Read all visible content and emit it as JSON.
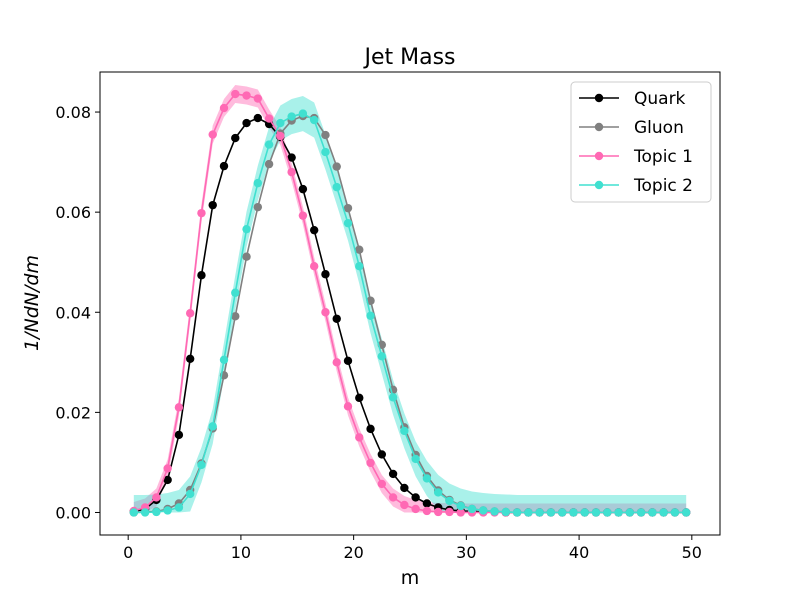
{
  "chart_data": {
    "type": "line",
    "title": "Jet Mass",
    "xlabel": "m",
    "ylabel": "1/NdN/dm",
    "xlim": [
      -2.5,
      52.5
    ],
    "ylim": [
      -0.0045,
      0.088
    ],
    "xticks": [
      0,
      10,
      20,
      30,
      40,
      50
    ],
    "xtick_labels": [
      "0",
      "10",
      "20",
      "30",
      "40",
      "50"
    ],
    "yticks": [
      0.0,
      0.02,
      0.04,
      0.06,
      0.08
    ],
    "ytick_labels": [
      "0.00",
      "0.02",
      "0.04",
      "0.06",
      "0.08"
    ],
    "grid": false,
    "legend_position": "top-right",
    "x": [
      0.5,
      1.5,
      2.5,
      3.5,
      4.5,
      5.5,
      6.5,
      7.5,
      8.5,
      9.5,
      10.5,
      11.5,
      12.5,
      13.5,
      14.5,
      15.5,
      16.5,
      17.5,
      18.5,
      19.5,
      20.5,
      21.5,
      22.5,
      23.5,
      24.5,
      25.5,
      26.5,
      27.5,
      28.5,
      29.5,
      30.5,
      31.5,
      32.5,
      33.5,
      34.5,
      35.5,
      36.5,
      37.5,
      38.5,
      39.5,
      40.5,
      41.5,
      42.5,
      43.5,
      44.5,
      45.5,
      46.5,
      47.5,
      48.5,
      49.5
    ],
    "series": [
      {
        "name": "Quark",
        "color": "#000000",
        "values": [
          0.0002,
          0.0007,
          0.0025,
          0.0065,
          0.0155,
          0.0307,
          0.0474,
          0.0614,
          0.0692,
          0.0748,
          0.0778,
          0.0788,
          0.0776,
          0.075,
          0.0709,
          0.0646,
          0.0564,
          0.0476,
          0.0387,
          0.0303,
          0.0229,
          0.0167,
          0.0116,
          0.0077,
          0.0049,
          0.003,
          0.0018,
          0.001,
          0.0005,
          0.0003,
          0.0002,
          0.0001,
          0.0001,
          0.0,
          0.0,
          0.0,
          0.0,
          0.0,
          0.0,
          0.0,
          0.0,
          0.0,
          0.0,
          0.0,
          0.0,
          0.0,
          0.0,
          0.0,
          0.0,
          0.0
        ]
      },
      {
        "name": "Gluon",
        "color": "#808080",
        "values": [
          0.0,
          0.0001,
          0.0002,
          0.0007,
          0.0018,
          0.0045,
          0.0098,
          0.0168,
          0.0274,
          0.0392,
          0.0511,
          0.061,
          0.0696,
          0.0757,
          0.0783,
          0.0792,
          0.0788,
          0.0754,
          0.0691,
          0.0608,
          0.0525,
          0.0423,
          0.0335,
          0.0245,
          0.017,
          0.0115,
          0.0073,
          0.0044,
          0.0025,
          0.0014,
          0.0007,
          0.0004,
          0.0002,
          0.0001,
          0.0,
          0.0,
          0.0,
          0.0,
          0.0,
          0.0,
          0.0,
          0.0,
          0.0,
          0.0,
          0.0,
          0.0,
          0.0,
          0.0,
          0.0,
          0.0
        ]
      },
      {
        "name": "Topic 1",
        "color": "#ff69b4",
        "band_error": 0.0018,
        "values": [
          0.0003,
          0.001,
          0.003,
          0.0088,
          0.021,
          0.0398,
          0.0598,
          0.0755,
          0.0808,
          0.0836,
          0.0833,
          0.0827,
          0.0787,
          0.0752,
          0.068,
          0.0593,
          0.0492,
          0.04,
          0.03,
          0.0212,
          0.015,
          0.0099,
          0.0057,
          0.003,
          0.0015,
          0.0007,
          0.0003,
          0.0001,
          0.0001,
          0.0,
          0.0,
          0.0,
          0.0,
          0.0,
          0.0,
          0.0,
          0.0,
          0.0,
          0.0,
          0.0,
          0.0,
          0.0,
          0.0,
          0.0,
          0.0,
          0.0,
          0.0,
          0.0,
          0.0,
          0.0
        ]
      },
      {
        "name": "Topic 2",
        "color": "#40e0d0",
        "band_error": 0.0035,
        "values": [
          0.0,
          0.0,
          0.0001,
          0.0004,
          0.001,
          0.0037,
          0.0095,
          0.0172,
          0.0305,
          0.0439,
          0.0566,
          0.0658,
          0.0735,
          0.0778,
          0.0791,
          0.0797,
          0.0784,
          0.072,
          0.065,
          0.0578,
          0.0492,
          0.0393,
          0.0312,
          0.023,
          0.0163,
          0.0107,
          0.0068,
          0.004,
          0.0023,
          0.0013,
          0.0007,
          0.0004,
          0.0002,
          0.0001,
          0.0,
          0.0,
          0.0,
          0.0,
          0.0,
          0.0,
          0.0,
          0.0,
          0.0,
          0.0,
          0.0,
          0.0,
          0.0,
          0.0,
          0.0,
          0.0
        ]
      }
    ]
  }
}
